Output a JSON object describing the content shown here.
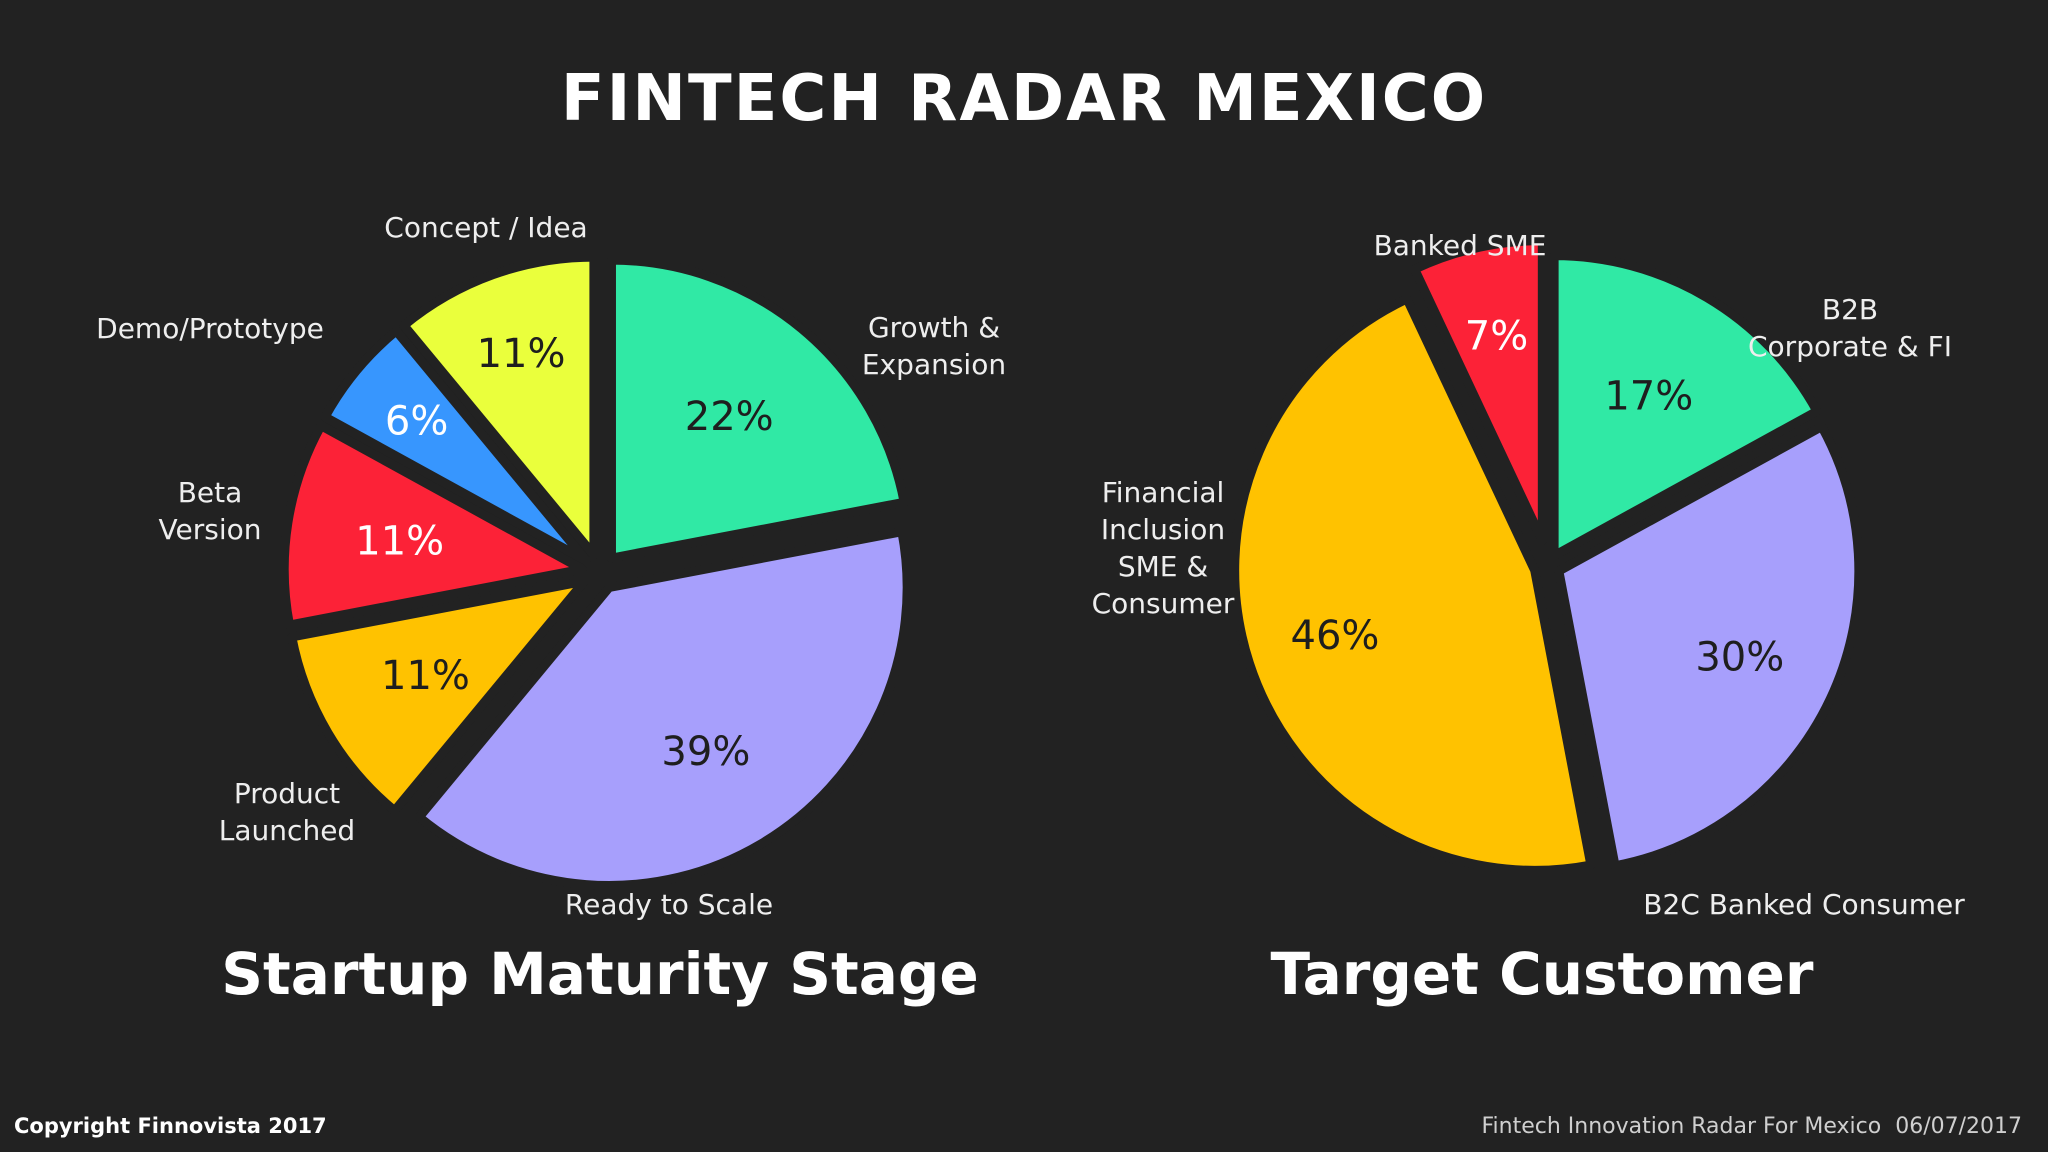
{
  "page_title": "FINTECH RADAR MEXICO",
  "chart_data": [
    {
      "type": "pie",
      "title": "Startup Maturity Stage",
      "labels": [
        "Growth & Expansion",
        "Ready to Scale",
        "Product Launched",
        "Beta Version",
        "Demo/Prototype",
        "Concept / Idea"
      ],
      "values": [
        22,
        39,
        11,
        11,
        6,
        11
      ],
      "value_labels": [
        "22%",
        "39%",
        "11%",
        "11%",
        "6%",
        "11%"
      ],
      "colors": [
        "#30e9a5",
        "#a79ffc",
        "#ffc200",
        "#fc2237",
        "#3796fe",
        "#eaff3c"
      ],
      "value_label_colors": [
        "#1e1e1e",
        "#1e1e1e",
        "#1e1e1e",
        "#ffffff",
        "#ffffff",
        "#1e1e1e"
      ]
    },
    {
      "type": "pie",
      "title": "Target Customer",
      "labels": [
        "B2B Corporate & FI",
        "B2C Banked Consumer",
        "Financial Inclusion SME & Consumer",
        "Banked SME"
      ],
      "values": [
        17,
        30,
        46,
        7
      ],
      "value_labels": [
        "17%",
        "30%",
        "46%",
        "7%"
      ],
      "colors": [
        "#30e9a5",
        "#a79ffc",
        "#ffc200",
        "#fc2237"
      ],
      "value_label_colors": [
        "#1e1e1e",
        "#1e1e1e",
        "#1e1e1e",
        "#ffffff"
      ]
    }
  ],
  "footer": {
    "copyright": "Copyright Finnovista 2017",
    "source": "Fintech Innovation Radar For Mexico  06/07/2017"
  }
}
